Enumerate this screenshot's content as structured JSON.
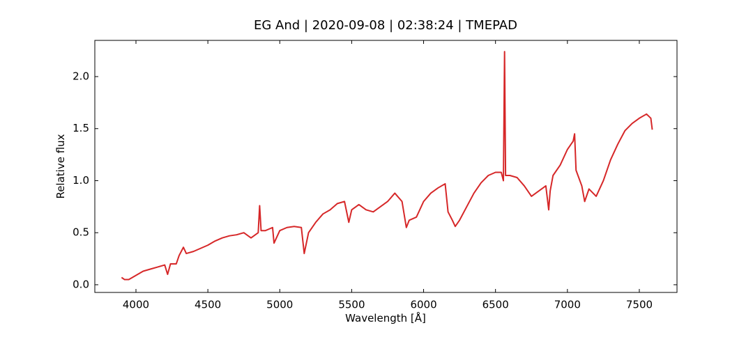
{
  "chart_data": {
    "type": "line",
    "title": "EG And | 2020-09-08 | 02:38:24 | TMEPAD",
    "x_label": "Wavelength [Å]",
    "y_label": "Relative flux",
    "xlim": [
      3714,
      7762
    ],
    "ylim": [
      -0.074,
      2.348
    ],
    "xticks": [
      4000,
      4500,
      5000,
      5500,
      6000,
      6500,
      7000,
      7500
    ],
    "yticks": [
      {
        "value": 0,
        "label": "0.0"
      },
      0.5,
      {
        "value": 1,
        "label": "1.0"
      },
      1.5,
      {
        "value": 2,
        "label": "2.0"
      }
    ],
    "grid": false,
    "series": [
      {
        "color": "#d62728",
        "x": [
          3900,
          3920,
          3950,
          4000,
          4050,
          4100,
          4150,
          4200,
          4220,
          4240,
          4280,
          4300,
          4330,
          4350,
          4400,
          4450,
          4500,
          4550,
          4600,
          4650,
          4700,
          4750,
          4800,
          4850,
          4860,
          4870,
          4900,
          4950,
          4960,
          5000,
          5050,
          5100,
          5150,
          5170,
          5200,
          5250,
          5300,
          5350,
          5400,
          5450,
          5480,
          5500,
          5550,
          5600,
          5650,
          5700,
          5750,
          5800,
          5850,
          5880,
          5900,
          5950,
          6000,
          6050,
          6100,
          6150,
          6170,
          6200,
          6220,
          6250,
          6300,
          6350,
          6400,
          6450,
          6500,
          6540,
          6555,
          6563,
          6570,
          6600,
          6650,
          6700,
          6750,
          6800,
          6850,
          6870,
          6880,
          6900,
          6950,
          7000,
          7040,
          7050,
          7060,
          7100,
          7120,
          7150,
          7200,
          7250,
          7300,
          7350,
          7400,
          7450,
          7500,
          7550,
          7580,
          7590
        ],
        "values": [
          0.07,
          0.05,
          0.05,
          0.09,
          0.13,
          0.15,
          0.17,
          0.19,
          0.1,
          0.2,
          0.2,
          0.28,
          0.36,
          0.3,
          0.32,
          0.35,
          0.38,
          0.42,
          0.45,
          0.47,
          0.48,
          0.5,
          0.45,
          0.5,
          0.76,
          0.52,
          0.52,
          0.55,
          0.4,
          0.52,
          0.55,
          0.56,
          0.55,
          0.3,
          0.5,
          0.6,
          0.68,
          0.72,
          0.78,
          0.8,
          0.6,
          0.72,
          0.77,
          0.72,
          0.7,
          0.75,
          0.8,
          0.88,
          0.8,
          0.55,
          0.62,
          0.65,
          0.8,
          0.88,
          0.93,
          0.97,
          0.7,
          0.62,
          0.56,
          0.62,
          0.75,
          0.88,
          0.98,
          1.05,
          1.08,
          1.08,
          1.0,
          2.24,
          1.05,
          1.05,
          1.03,
          0.95,
          0.85,
          0.9,
          0.95,
          0.72,
          0.9,
          1.05,
          1.15,
          1.3,
          1.38,
          1.45,
          1.1,
          0.95,
          0.8,
          0.92,
          0.85,
          1.0,
          1.2,
          1.35,
          1.48,
          1.55,
          1.6,
          1.64,
          1.6,
          1.49
        ]
      }
    ]
  }
}
